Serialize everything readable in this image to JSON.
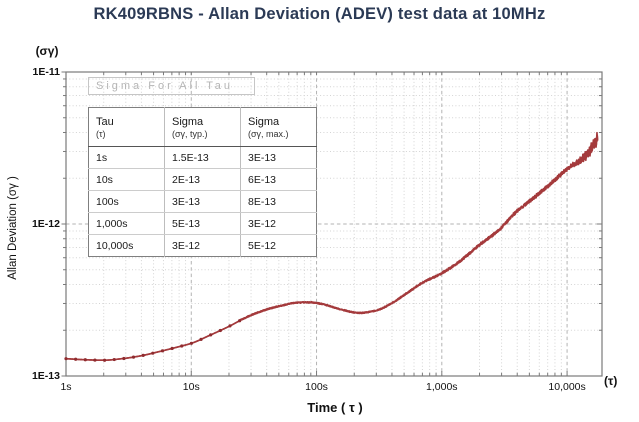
{
  "title": "RK409RBNS - Allan Deviation (ADEV) test data at 10MHz",
  "colors": {
    "title": "#2b3a55",
    "curve": "#a43a3c",
    "curve_base": "#b86868",
    "curve_marker": "#8f2c2f",
    "grid_minor": "#d4d4d4",
    "grid_major": "#b3b3b3",
    "frame": "#7a7a7a",
    "text": "#111111",
    "overlay_text": "#b5b5b5"
  },
  "overlay_box": {
    "label": "Sigma For All Tau"
  },
  "y_axis": {
    "unit_label": "(σγ)",
    "title": "Allan Deviation (σγ )",
    "ticks": [
      {
        "label": "1E-11",
        "value": 1e-11
      },
      {
        "label": "1E-12",
        "value": 1e-12
      },
      {
        "label": "1E-13",
        "value": 1e-13
      }
    ]
  },
  "x_axis": {
    "unit_label": "(τ)",
    "title": "Time ( τ )",
    "ticks": [
      {
        "label": "1s",
        "value": 1
      },
      {
        "label": "10s",
        "value": 10
      },
      {
        "label": "100s",
        "value": 100
      },
      {
        "label": "1,000s",
        "value": 1000
      },
      {
        "label": "10,000s",
        "value": 10000
      }
    ]
  },
  "table": {
    "headers": [
      {
        "main": "Tau",
        "sub": "(τ)"
      },
      {
        "main": "Sigma",
        "sub": "(σγ, typ.)"
      },
      {
        "main": "Sigma",
        "sub": "(σγ, max.)"
      }
    ],
    "rows": [
      [
        "1s",
        "1.5E-13",
        "3E-13"
      ],
      [
        "10s",
        "2E-13",
        "6E-13"
      ],
      [
        "100s",
        "3E-13",
        "8E-13"
      ],
      [
        "1,000s",
        "5E-13",
        "3E-12"
      ],
      [
        "10,000s",
        "3E-12",
        "5E-12"
      ]
    ]
  },
  "chart_data": {
    "type": "line",
    "title": "RK409RBNS - Allan Deviation (ADEV) test data at 10MHz",
    "xlabel": "Time (τ)",
    "ylabel": "Allan Deviation (σγ)",
    "x_scale": "log",
    "y_scale": "log",
    "xlim": [
      1,
      19000
    ],
    "ylim": [
      1e-13,
      1e-11
    ],
    "grid": true,
    "series": [
      {
        "name": "ADEV",
        "points": [
          [
            1,
            1.3e-13
          ],
          [
            1.4,
            1.28e-13
          ],
          [
            2,
            1.27e-13
          ],
          [
            2.8,
            1.3e-13
          ],
          [
            4,
            1.36e-13
          ],
          [
            5.6,
            1.45e-13
          ],
          [
            8,
            1.56e-13
          ],
          [
            10,
            1.64e-13
          ],
          [
            14,
            1.85e-13
          ],
          [
            20,
            2.12e-13
          ],
          [
            28,
            2.45e-13
          ],
          [
            40,
            2.74e-13
          ],
          [
            55,
            2.93e-13
          ],
          [
            70,
            3.04e-13
          ],
          [
            90,
            3.05e-13
          ],
          [
            110,
            2.98e-13
          ],
          [
            150,
            2.77e-13
          ],
          [
            220,
            2.6e-13
          ],
          [
            300,
            2.7e-13
          ],
          [
            400,
            3.02e-13
          ],
          [
            550,
            3.6e-13
          ],
          [
            700,
            4.1e-13
          ],
          [
            1000,
            4.75e-13
          ],
          [
            1400,
            5.7e-13
          ],
          [
            2000,
            7.3e-13
          ],
          [
            2800,
            9e-13
          ],
          [
            4000,
            1.22e-12
          ],
          [
            5500,
            1.5e-12
          ],
          [
            8000,
            1.95e-12
          ],
          [
            10000,
            2.3e-12
          ],
          [
            14000,
            2.8e-12
          ],
          [
            17600,
            3.7e-12
          ]
        ]
      }
    ]
  }
}
